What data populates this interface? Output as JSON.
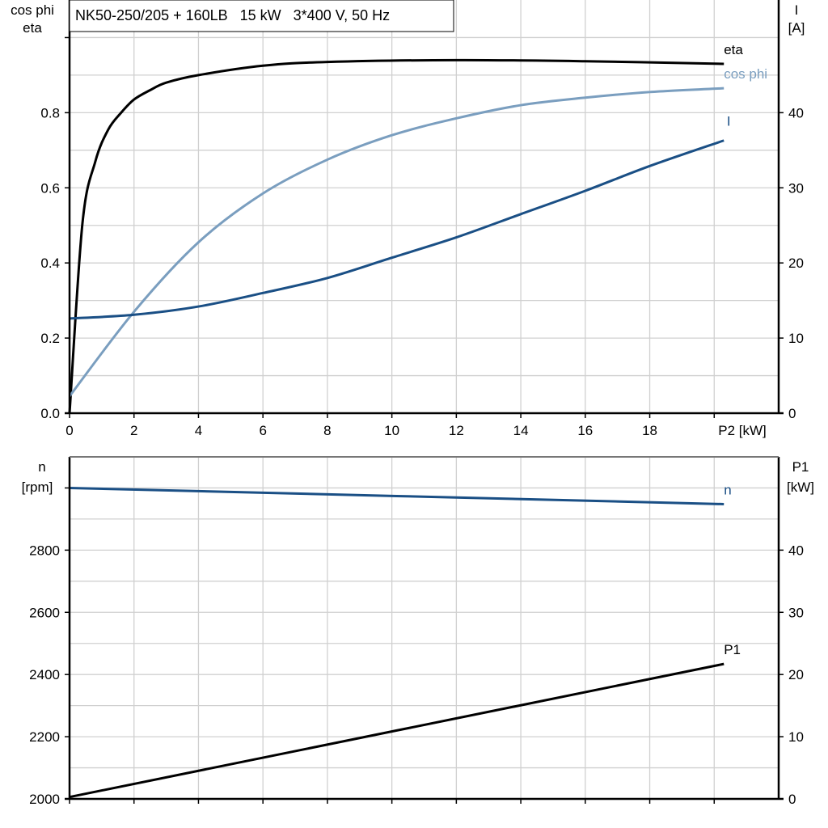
{
  "chart_data": [
    {
      "type": "line",
      "title": "NK50-250/205 + 160LB   15 kW   3*400 V, 50 Hz",
      "xlabel": "P2 [kW]",
      "ylabel_left": [
        "cos phi",
        "eta"
      ],
      "ylabel_right": [
        "I",
        "[A]"
      ],
      "xlim": [
        0,
        22
      ],
      "ylim_left": [
        0,
        1.1
      ],
      "ylim_right": [
        0,
        55
      ],
      "x_ticks": [
        "0",
        "2",
        "4",
        "6",
        "8",
        "10",
        "12",
        "14",
        "16",
        "18"
      ],
      "y_ticks_left": [
        "0.0",
        "0.2",
        "0.4",
        "0.6",
        "0.8"
      ],
      "y_ticks_right": [
        "0",
        "10",
        "20",
        "30",
        "40"
      ],
      "grid": true,
      "series": [
        {
          "name": "eta",
          "axis": "left",
          "color": "#000000",
          "x": [
            0,
            0.4,
            0.8,
            1.2,
            1.6,
            2,
            2.5,
            3,
            4,
            6,
            8,
            12,
            16,
            20.3
          ],
          "y": [
            0.0,
            0.505,
            0.67,
            0.755,
            0.8,
            0.835,
            0.86,
            0.88,
            0.9,
            0.925,
            0.935,
            0.94,
            0.937,
            0.93
          ]
        },
        {
          "name": "cos phi",
          "axis": "left",
          "color": "#7a9ebf",
          "x": [
            0,
            2,
            4,
            6,
            8,
            10,
            12,
            14,
            16,
            18,
            20.3
          ],
          "y": [
            0.045,
            0.27,
            0.455,
            0.585,
            0.675,
            0.74,
            0.785,
            0.82,
            0.84,
            0.855,
            0.865
          ]
        },
        {
          "name": "I",
          "axis": "right",
          "color": "#1a4f85",
          "x": [
            0,
            2,
            4,
            6,
            8,
            10,
            12,
            14,
            16,
            18,
            20.3
          ],
          "y": [
            12.6,
            13.1,
            14.2,
            16.0,
            18.0,
            20.7,
            23.4,
            26.5,
            29.6,
            32.9,
            36.3
          ]
        }
      ]
    },
    {
      "type": "line",
      "xlim": [
        0,
        22
      ],
      "ylabel_left": [
        "n",
        "[rpm]"
      ],
      "ylabel_right": [
        "P1",
        "[kW]"
      ],
      "ylim_left": [
        2000,
        3100
      ],
      "ylim_right": [
        0,
        55
      ],
      "y_ticks_left": [
        "2000",
        "2200",
        "2400",
        "2600",
        "2800"
      ],
      "y_ticks_right": [
        "0",
        "10",
        "20",
        "30",
        "40"
      ],
      "grid": true,
      "series": [
        {
          "name": "n",
          "axis": "left",
          "color": "#1a4f85",
          "x": [
            0,
            20.3
          ],
          "y": [
            3000,
            2948
          ]
        },
        {
          "name": "P1",
          "axis": "right",
          "color": "#000000",
          "x": [
            0,
            20.3
          ],
          "y": [
            0.3,
            21.7
          ]
        }
      ]
    }
  ]
}
